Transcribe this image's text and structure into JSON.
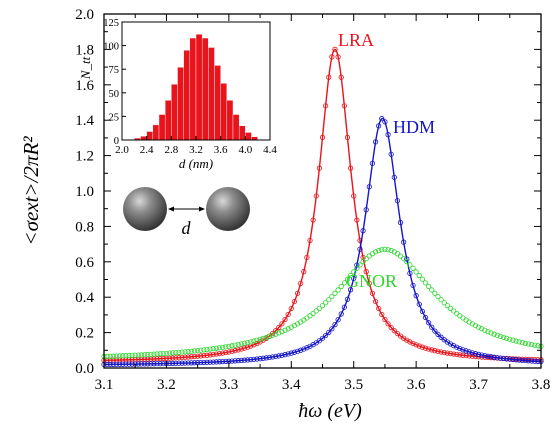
{
  "chart_data": [
    {
      "type": "line",
      "xlabel": "ħω (eV)",
      "ylabel": "<σext>/2πR²",
      "xlim": [
        3.1,
        3.8
      ],
      "ylim": [
        0.0,
        2.0
      ],
      "x_ticks": [
        "3.1",
        "3.2",
        "3.3",
        "3.4",
        "3.5",
        "3.6",
        "3.7",
        "3.8"
      ],
      "y_ticks": [
        "0.0",
        "0.2",
        "0.4",
        "0.6",
        "0.8",
        "1.0",
        "1.2",
        "1.4",
        "1.6",
        "1.8",
        "2.0"
      ],
      "grid": false,
      "legend": "inline labels next to curves",
      "series": [
        {
          "name": "LRA",
          "color": "#e8141b",
          "peak_x": 3.47,
          "peak_y": 1.8,
          "hwhm": 0.032,
          "base": 0.03,
          "marker": "open-circle",
          "line": true
        },
        {
          "name": "HDM",
          "color": "#1515c8",
          "peak_x": 3.546,
          "peak_y": 1.41,
          "hwhm": 0.034,
          "base": 0.012,
          "marker": "open-circle",
          "line": true
        },
        {
          "name": "GNOR",
          "color": "#2dd62d",
          "peak_x": 3.55,
          "peak_y": 0.67,
          "hwhm": 0.1,
          "base": 0.035,
          "marker": "open-circle",
          "line": false
        }
      ],
      "annotations": {
        "dimer_label": "d"
      }
    },
    {
      "type": "bar",
      "xlabel": "d (nm)",
      "ylabel": "N_tt",
      "xlim": [
        2.0,
        4.4
      ],
      "ylim": [
        0,
        125
      ],
      "x_ticks": [
        "2.0",
        "2.4",
        "2.8",
        "3.2",
        "3.6",
        "4.0",
        "4.4"
      ],
      "y_ticks": [
        "0",
        "25",
        "50",
        "75",
        "100",
        "125"
      ],
      "bar_color": "#e8141b",
      "bin_width": 0.1,
      "bin_centers": [
        2.15,
        2.25,
        2.35,
        2.45,
        2.55,
        2.65,
        2.75,
        2.85,
        2.95,
        3.05,
        3.15,
        3.25,
        3.35,
        3.45,
        3.55,
        3.65,
        3.75,
        3.85,
        3.95,
        4.05,
        4.15
      ],
      "values": [
        0.6,
        2,
        4,
        9,
        16,
        27,
        42,
        59,
        77,
        95,
        108,
        112,
        108,
        98,
        79,
        60,
        42,
        27,
        15,
        8,
        3.5
      ]
    }
  ]
}
